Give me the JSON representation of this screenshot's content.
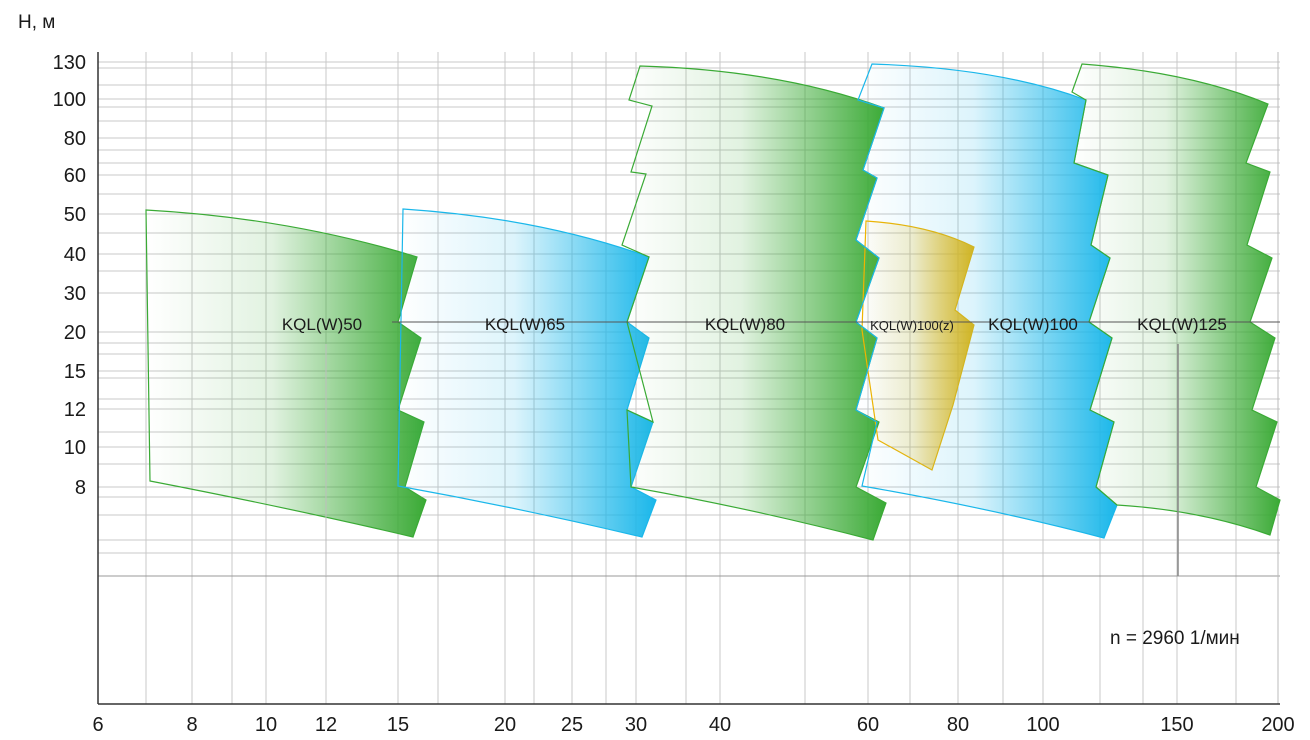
{
  "chart_data": {
    "type": "area",
    "ylabel": "H, м",
    "xlabel": "",
    "x_ticks": [
      "6",
      "8",
      "10",
      "12",
      "15",
      "20",
      "25",
      "30",
      "40",
      "60",
      "80",
      "100",
      "150",
      "200"
    ],
    "y_ticks": [
      "130",
      "100",
      "80",
      "60",
      "50",
      "40",
      "30",
      "20",
      "15",
      "12",
      "10",
      "8"
    ],
    "annotation": "n = 2960 1/мин",
    "grid": true,
    "series": [
      {
        "name": "KQL(W)50",
        "color": "#3aaa35"
      },
      {
        "name": "KQL(W)65",
        "color": "#1ab7ea"
      },
      {
        "name": "KQL(W)80",
        "color": "#3aaa35"
      },
      {
        "name": "KQL(W)100(z)",
        "color": "#f0b400"
      },
      {
        "name": "KQL(W)100",
        "color": "#1ab7ea"
      },
      {
        "name": "KQL(W)125",
        "color": "#3aaa35"
      }
    ]
  }
}
